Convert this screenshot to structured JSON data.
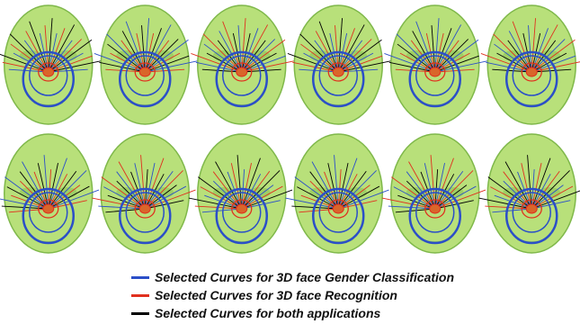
{
  "colors": {
    "face_fill": "#b8e07a",
    "face_stroke": "#7fb84a",
    "gender": "#2b4fc8",
    "recognition": "#e0301e",
    "both": "#000000",
    "nose": "#d9662a"
  },
  "legend": [
    {
      "label": "Selected Curves for 3D face Gender Classification",
      "color_key": "gender"
    },
    {
      "label": "Selected Curves for 3D face Recognition",
      "color_key": "recognition"
    },
    {
      "label": "Selected Curves for both applications",
      "color_key": "both"
    }
  ],
  "rows": [
    {
      "faces": 6
    },
    {
      "faces": 6
    }
  ]
}
